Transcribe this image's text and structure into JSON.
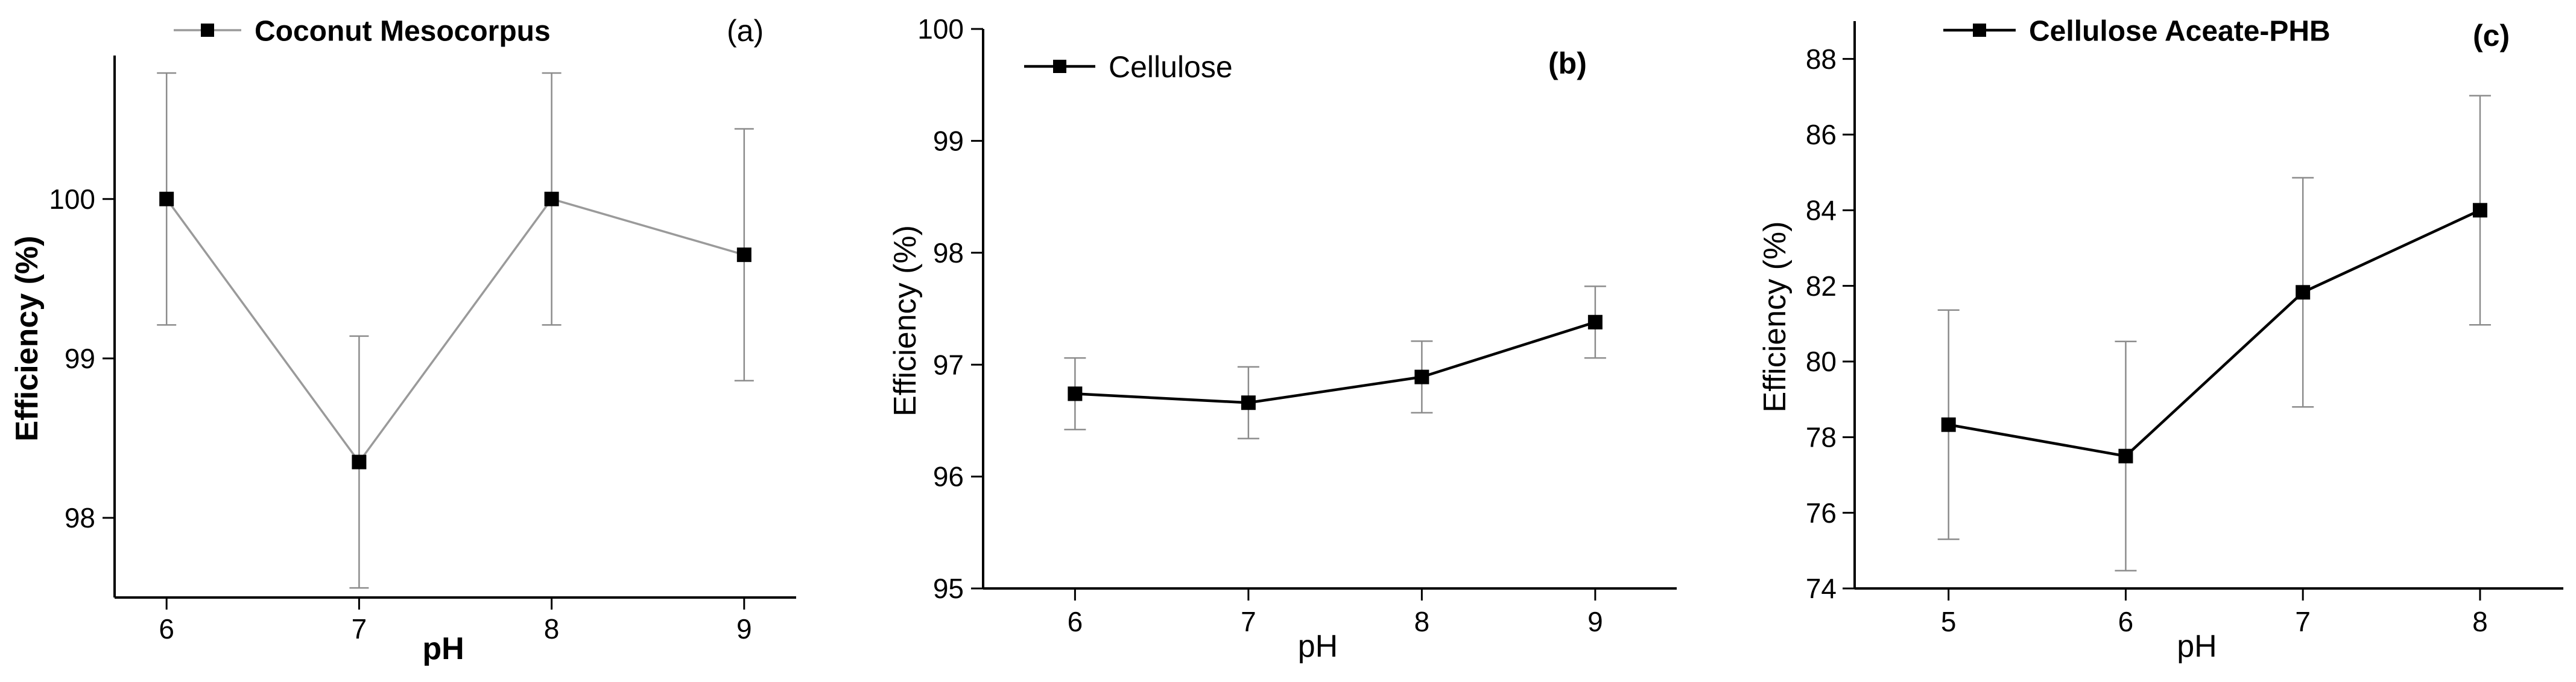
{
  "chart_data": [
    {
      "type": "line",
      "panel_label": "(a)",
      "legend": "Coconut Mesocorpus",
      "xlabel": "pH",
      "ylabel": "Efficiency (%)",
      "x": [
        6,
        7,
        8,
        9
      ],
      "values": [
        100.0,
        98.35,
        100.0,
        99.65
      ],
      "errors": [
        0.79,
        0.79,
        0.79,
        0.79
      ],
      "xlim": [
        5.73,
        9.27
      ],
      "ylim": [
        97.5,
        100.9
      ],
      "yticks": [
        98,
        99,
        100
      ],
      "xticks": [
        6,
        7,
        8,
        9
      ],
      "ytick_labels": [
        "98",
        "99",
        "100"
      ],
      "xtick_labels": [
        "6",
        "7",
        "8",
        "9"
      ],
      "line_color": "#9a9a9a",
      "marker_color": "#000000"
    },
    {
      "type": "line",
      "panel_label": "(b)",
      "legend": "Cellulose",
      "xlabel": "pH",
      "ylabel": "Efficiency (%)",
      "x": [
        6,
        7,
        8,
        9
      ],
      "values": [
        96.74,
        96.66,
        96.89,
        97.38
      ],
      "errors": [
        0.32,
        0.32,
        0.32,
        0.32
      ],
      "xlim": [
        5.47,
        9.47
      ],
      "ylim": [
        95,
        100
      ],
      "yticks": [
        95,
        96,
        97,
        98,
        99,
        100
      ],
      "xticks": [
        6,
        7,
        8,
        9
      ],
      "ytick_labels": [
        "95",
        "96",
        "97",
        "98",
        "99",
        "100"
      ],
      "xtick_labels": [
        "6",
        "7",
        "8",
        "9"
      ],
      "line_color": "#000000",
      "marker_color": "#000000"
    },
    {
      "type": "line",
      "panel_label": "(c)",
      "legend": "Cellulose Aceate-PHB",
      "xlabel": "pH",
      "ylabel": "Efficiency (%)",
      "x": [
        5,
        6,
        7,
        8
      ],
      "values": [
        78.33,
        77.5,
        81.83,
        84.0
      ],
      "errors": [
        3.03,
        3.03,
        3.03,
        3.03
      ],
      "xlim": [
        4.47,
        8.47
      ],
      "ylim": [
        74,
        89
      ],
      "yticks": [
        74,
        76,
        78,
        80,
        82,
        84,
        86,
        88
      ],
      "xticks": [
        5,
        6,
        7,
        8
      ],
      "ytick_labels": [
        "74",
        "76",
        "78",
        "80",
        "82",
        "84",
        "86",
        "88"
      ],
      "xtick_labels": [
        "5",
        "6",
        "7",
        "8"
      ],
      "line_color": "#000000",
      "marker_color": "#000000"
    }
  ]
}
